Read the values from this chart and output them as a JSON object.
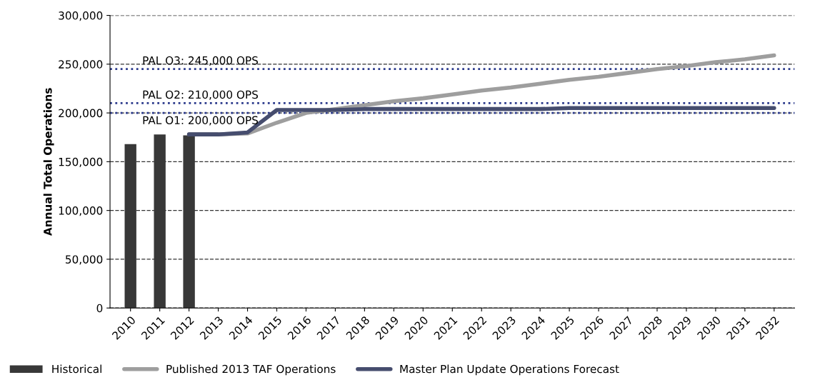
{
  "chart_data": {
    "type": "bar",
    "ylabel": "Annual Total Operations",
    "categories": [
      "2010",
      "2011",
      "2012",
      "2013",
      "2014",
      "2015",
      "2016",
      "2017",
      "2018",
      "2019",
      "2020",
      "2021",
      "2022",
      "2023",
      "2024",
      "2025",
      "2026",
      "2027",
      "2028",
      "2029",
      "2030",
      "2031",
      "2032"
    ],
    "series": [
      {
        "name": "Historical",
        "color": "#383838",
        "values": [
          168000,
          178000,
          177000,
          null,
          null,
          null,
          null,
          null,
          null,
          null,
          null,
          null,
          null,
          null,
          null,
          null,
          null,
          null,
          null,
          null,
          null,
          null,
          null
        ]
      },
      {
        "name": "Published 2013 TAF Operations",
        "type": "line",
        "color": "#9e9e9e",
        "values": [
          null,
          null,
          178000,
          178000,
          179000,
          190000,
          200000,
          204000,
          208000,
          212000,
          215000,
          219000,
          223000,
          226000,
          230000,
          234000,
          237000,
          241000,
          245000,
          248000,
          252000,
          255000,
          259000
        ]
      },
      {
        "name": "Master Plan Update Operations Forecast",
        "type": "line",
        "color": "#464d6e",
        "values": [
          null,
          null,
          178000,
          178000,
          180000,
          203000,
          203000,
          203000,
          204000,
          204000,
          204000,
          204000,
          204000,
          204000,
          204000,
          205000,
          205000,
          205000,
          205000,
          205000,
          205000,
          205000,
          205000
        ]
      }
    ],
    "ylim": [
      0,
      300000
    ],
    "yticks": [
      {
        "value": 0,
        "label": "0"
      },
      {
        "value": 50000,
        "label": "50,000"
      },
      {
        "value": 100000,
        "label": "100,000"
      },
      {
        "value": 150000,
        "label": "150,000"
      },
      {
        "value": 200000,
        "label": "200,000"
      },
      {
        "value": 250000,
        "label": "250,000"
      },
      {
        "value": 300000,
        "label": "300,000"
      }
    ],
    "ref_lines": [
      {
        "axis": "y",
        "value": 245000,
        "label": "PAL O3: 245,000 OPS",
        "color": "#2b3a8c",
        "line_style": "dotted"
      },
      {
        "axis": "y",
        "value": 210000,
        "label": "PAL O2: 210,000 OPS",
        "color": "#2b3a8c",
        "line_style": "dotted"
      },
      {
        "axis": "y",
        "value": 200000,
        "label": "PAL O1: 200,000 OPS",
        "color": "#2b3a8c",
        "line_style": "dotted"
      }
    ],
    "grid": "y",
    "legend": "bottom"
  }
}
